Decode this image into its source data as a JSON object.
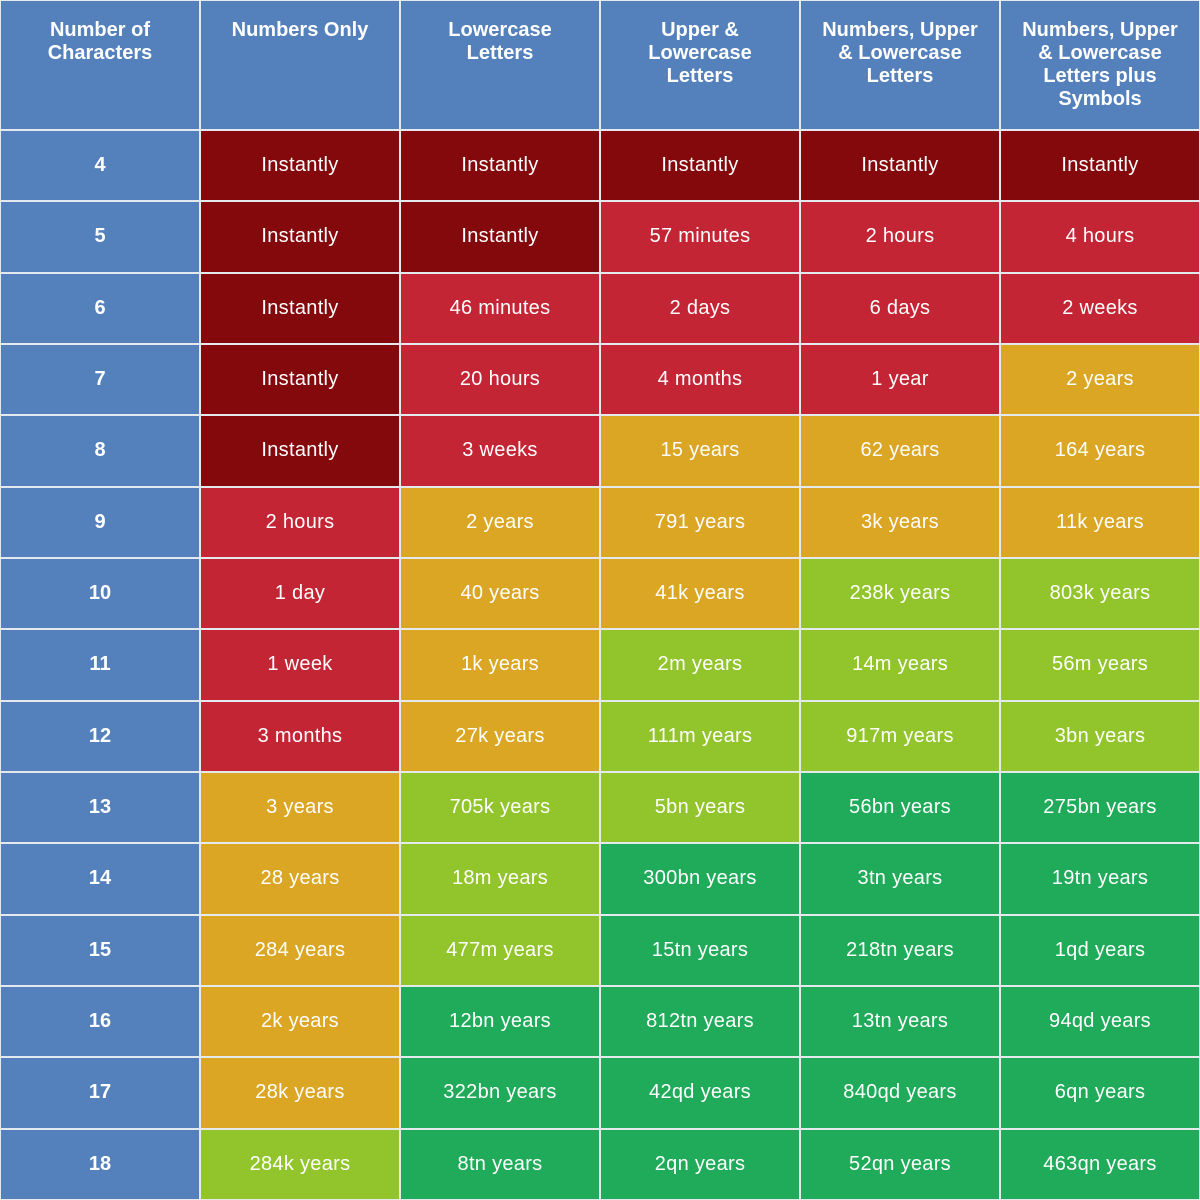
{
  "chart_data": {
    "type": "table",
    "columns": [
      "Number of\nCharacters",
      "Numbers Only",
      "Lowercase\nLetters",
      "Upper &\nLowercase\nLetters",
      "Numbers, Upper\n& Lowercase\nLetters",
      "Numbers, Upper\n& Lowercase\nLetters plus\nSymbols"
    ],
    "rows": [
      {
        "chars": "4",
        "values": [
          "Instantly",
          "Instantly",
          "Instantly",
          "Instantly",
          "Instantly"
        ],
        "levels": [
          "instant",
          "instant",
          "instant",
          "instant",
          "instant"
        ]
      },
      {
        "chars": "5",
        "values": [
          "Instantly",
          "Instantly",
          "57 minutes",
          "2 hours",
          "4 hours"
        ],
        "levels": [
          "instant",
          "instant",
          "weak",
          "weak",
          "weak"
        ]
      },
      {
        "chars": "6",
        "values": [
          "Instantly",
          "46 minutes",
          "2 days",
          "6 days",
          "2 weeks"
        ],
        "levels": [
          "instant",
          "weak",
          "weak",
          "weak",
          "weak"
        ]
      },
      {
        "chars": "7",
        "values": [
          "Instantly",
          "20 hours",
          "4 months",
          "1 year",
          "2 years"
        ],
        "levels": [
          "instant",
          "weak",
          "weak",
          "weak",
          "moderate"
        ]
      },
      {
        "chars": "8",
        "values": [
          "Instantly",
          "3 weeks",
          "15 years",
          "62 years",
          "164 years"
        ],
        "levels": [
          "instant",
          "weak",
          "moderate",
          "moderate",
          "moderate"
        ]
      },
      {
        "chars": "9",
        "values": [
          "2 hours",
          "2 years",
          "791 years",
          "3k years",
          "11k years"
        ],
        "levels": [
          "weak",
          "moderate",
          "moderate",
          "moderate",
          "moderate"
        ]
      },
      {
        "chars": "10",
        "values": [
          "1 day",
          "40 years",
          "41k years",
          "238k years",
          "803k years"
        ],
        "levels": [
          "weak",
          "moderate",
          "moderate",
          "strong",
          "strong"
        ]
      },
      {
        "chars": "11",
        "values": [
          "1 week",
          "1k years",
          "2m years",
          "14m years",
          "56m years"
        ],
        "levels": [
          "weak",
          "moderate",
          "strong",
          "strong",
          "strong"
        ]
      },
      {
        "chars": "12",
        "values": [
          "3 months",
          "27k years",
          "111m years",
          "917m years",
          "3bn years"
        ],
        "levels": [
          "weak",
          "moderate",
          "strong",
          "strong",
          "strong"
        ]
      },
      {
        "chars": "13",
        "values": [
          "3 years",
          "705k years",
          "5bn years",
          "56bn years",
          "275bn years"
        ],
        "levels": [
          "moderate",
          "strong",
          "strong",
          "very_strong",
          "very_strong"
        ]
      },
      {
        "chars": "14",
        "values": [
          "28 years",
          "18m years",
          "300bn years",
          "3tn years",
          "19tn years"
        ],
        "levels": [
          "moderate",
          "strong",
          "very_strong",
          "very_strong",
          "very_strong"
        ]
      },
      {
        "chars": "15",
        "values": [
          "284 years",
          "477m years",
          "15tn years",
          "218tn years",
          "1qd years"
        ],
        "levels": [
          "moderate",
          "strong",
          "very_strong",
          "very_strong",
          "very_strong"
        ]
      },
      {
        "chars": "16",
        "values": [
          "2k years",
          "12bn years",
          "812tn years",
          "13tn years",
          "94qd years"
        ],
        "levels": [
          "moderate",
          "very_strong",
          "very_strong",
          "very_strong",
          "very_strong"
        ]
      },
      {
        "chars": "17",
        "values": [
          "28k years",
          "322bn years",
          "42qd years",
          "840qd years",
          "6qn years"
        ],
        "levels": [
          "moderate",
          "very_strong",
          "very_strong",
          "very_strong",
          "very_strong"
        ]
      },
      {
        "chars": "18",
        "values": [
          "284k years",
          "8tn years",
          "2qn years",
          "52qn years",
          "463qn years"
        ],
        "levels": [
          "strong",
          "very_strong",
          "very_strong",
          "very_strong",
          "very_strong"
        ]
      }
    ],
    "colors": {
      "header": "#5480bb",
      "instant": "#83090c",
      "weak": "#c32534",
      "moderate": "#dba623",
      "strong": "#92c42b",
      "very_strong": "#1fab59"
    }
  }
}
